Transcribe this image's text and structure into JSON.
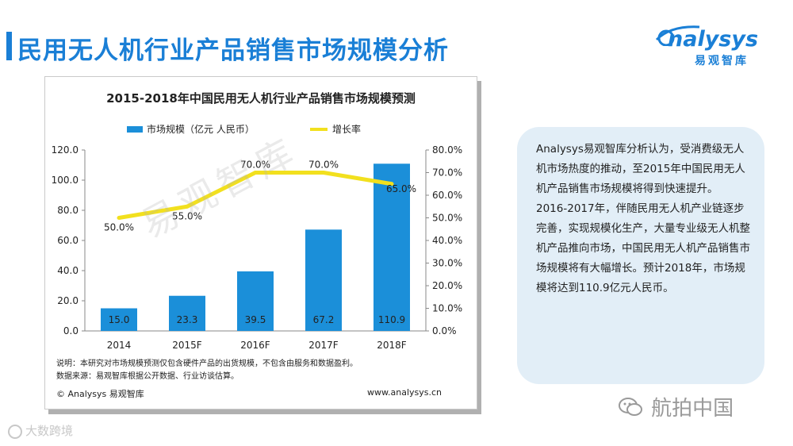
{
  "page": {
    "title": "民用无人机行业产品销售市场规模分析",
    "watermark": "易观智库"
  },
  "brand": {
    "name": "nalysys",
    "subtitle": "易观智库"
  },
  "chart": {
    "notes": [
      "说明：本研究对市场规模预测仅包含硬件产品的出货规模，不包含由服务和数据盈利。",
      "数据来源：易观智库根据公开数据、行业访谈估算。"
    ],
    "copyright": "© Analysys 易观智库",
    "website": "www.analysys.cn"
  },
  "chart_data": {
    "type": "bar",
    "title": "2015-2018年中国民用无人机行业产品销售市场规模预测",
    "categories": [
      "2014",
      "2015F",
      "2016F",
      "2017F",
      "2018F"
    ],
    "series": [
      {
        "name": "市场规模（亿元 人民币）",
        "type": "bar",
        "axis": "left",
        "values": [
          15.0,
          23.3,
          39.5,
          67.2,
          110.9
        ],
        "labels": [
          "15.0",
          "23.3",
          "39.5",
          "67.2",
          "110.9"
        ]
      },
      {
        "name": "增长率",
        "type": "line",
        "axis": "right",
        "values": [
          50.0,
          55.0,
          70.0,
          70.0,
          65.0
        ],
        "labels": [
          "50.0%",
          "55.0%",
          "70.0%",
          "70.0%",
          "65.0%"
        ]
      }
    ],
    "ylim": [
      0,
      120
    ],
    "yticks": [
      "0.0",
      "20.0",
      "40.0",
      "60.0",
      "80.0",
      "100.0",
      "120.0"
    ],
    "y2lim": [
      0,
      80
    ],
    "y2ticks": [
      "0.0%",
      "10.0%",
      "20.0%",
      "30.0%",
      "40.0%",
      "50.0%",
      "60.0%",
      "70.0%",
      "80.0%"
    ],
    "legend_position": "top",
    "colors": {
      "bar": "#1b8fd9",
      "line": "#f2e01e"
    }
  },
  "side_panel": {
    "paragraphs": [
      "Analysys易观智库分析认为，受消费级无人机市场热度的推动，至2015年中国民用无人机产品销售市场规模将得到快速提升。",
      "2016-2017年，伴随民用无人机产业链逐步完善，实现规模化生产，大量专业级无人机整机产品推向市场，中国民用无人机产品销售市场规模将有大幅增长。预计2018年，市场规模将达到110.9亿元人民币。"
    ]
  },
  "footer": {
    "corner_logo": "大数跨境",
    "wechat": "航拍中国"
  }
}
